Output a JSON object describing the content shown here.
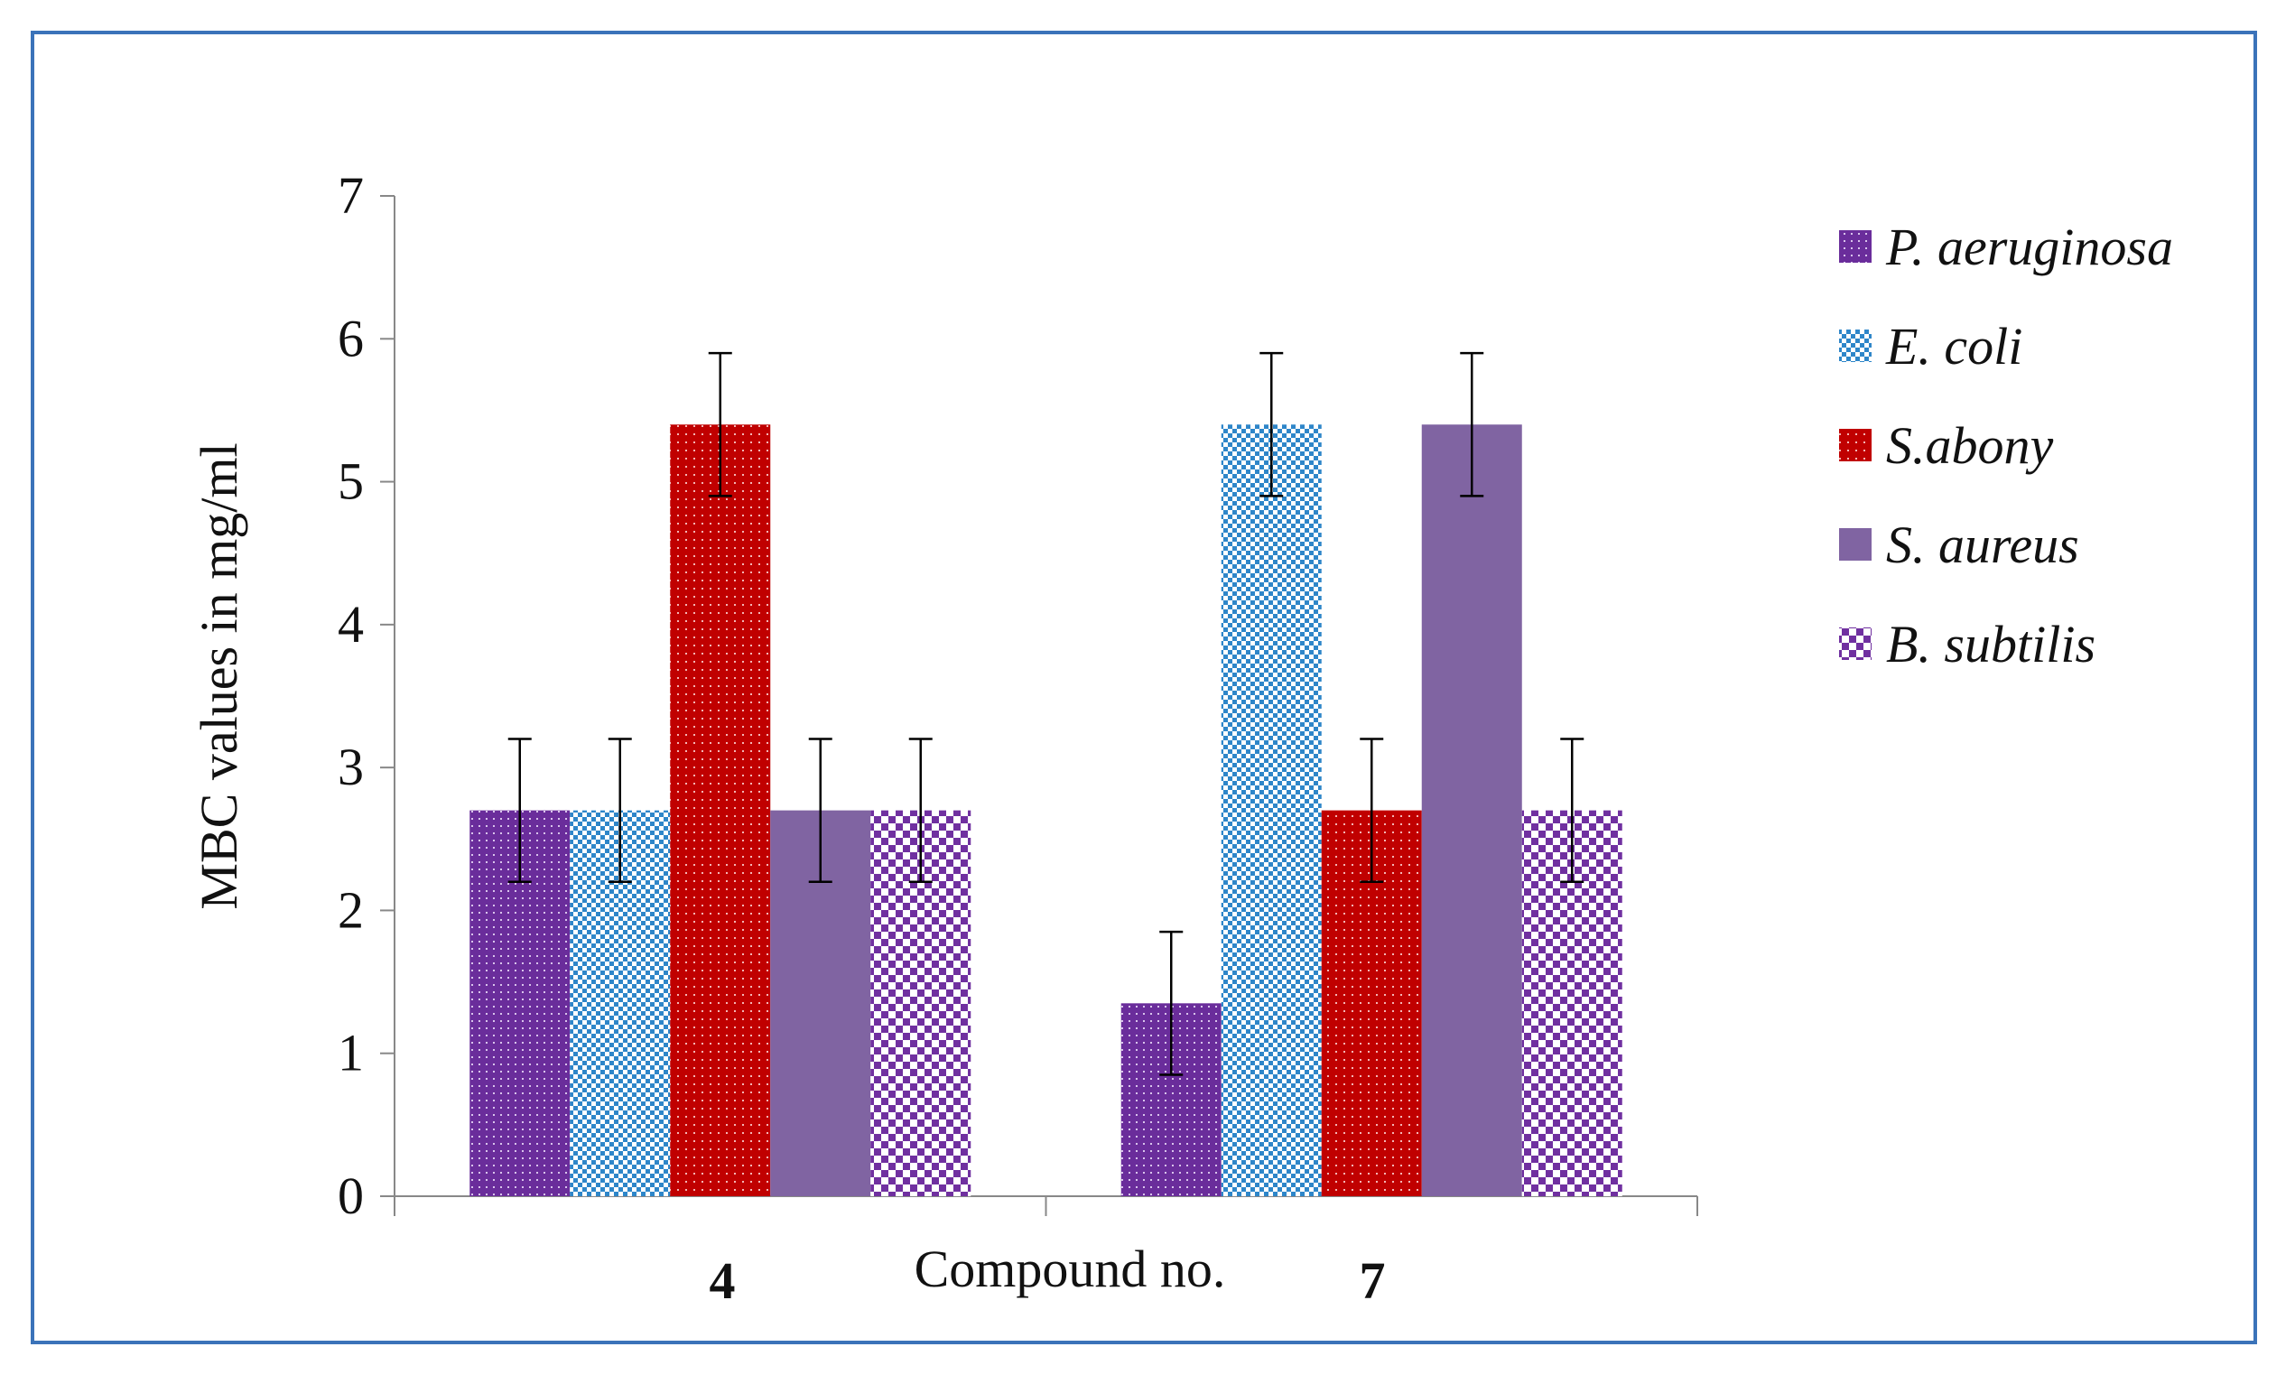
{
  "chart_data": {
    "type": "bar",
    "title": "",
    "xlabel": "Compound no.",
    "ylabel": "MBC values in mg/ml",
    "categories": [
      "4",
      "7"
    ],
    "ylim": [
      0,
      7
    ],
    "yticks": [
      0,
      1,
      2,
      3,
      4,
      5,
      6,
      7
    ],
    "grid": false,
    "legend_position": "right",
    "series": [
      {
        "name": "P. aeruginosa",
        "values": [
          2.7,
          1.35
        ],
        "error": [
          0.5,
          0.5
        ],
        "color": "#6a2d9b",
        "pattern": "dots-dense"
      },
      {
        "name": "E. coli",
        "values": [
          2.7,
          5.4
        ],
        "error": [
          0.5,
          0.5
        ],
        "color": "#2e86c9",
        "pattern": "checker-small"
      },
      {
        "name": "S.abony",
        "values": [
          5.4,
          2.7
        ],
        "error": [
          0.5,
          0.5
        ],
        "color": "#c00000",
        "pattern": "dots"
      },
      {
        "name": "S. aureus",
        "values": [
          2.7,
          5.4
        ],
        "error": [
          0.5,
          0.5
        ],
        "color": "#8064a2",
        "pattern": "solid"
      },
      {
        "name": "B. subtilis",
        "values": [
          2.7,
          2.7
        ],
        "error": [
          0.5,
          0.5
        ],
        "color": "#7030a0",
        "pattern": "checker-large"
      }
    ]
  }
}
